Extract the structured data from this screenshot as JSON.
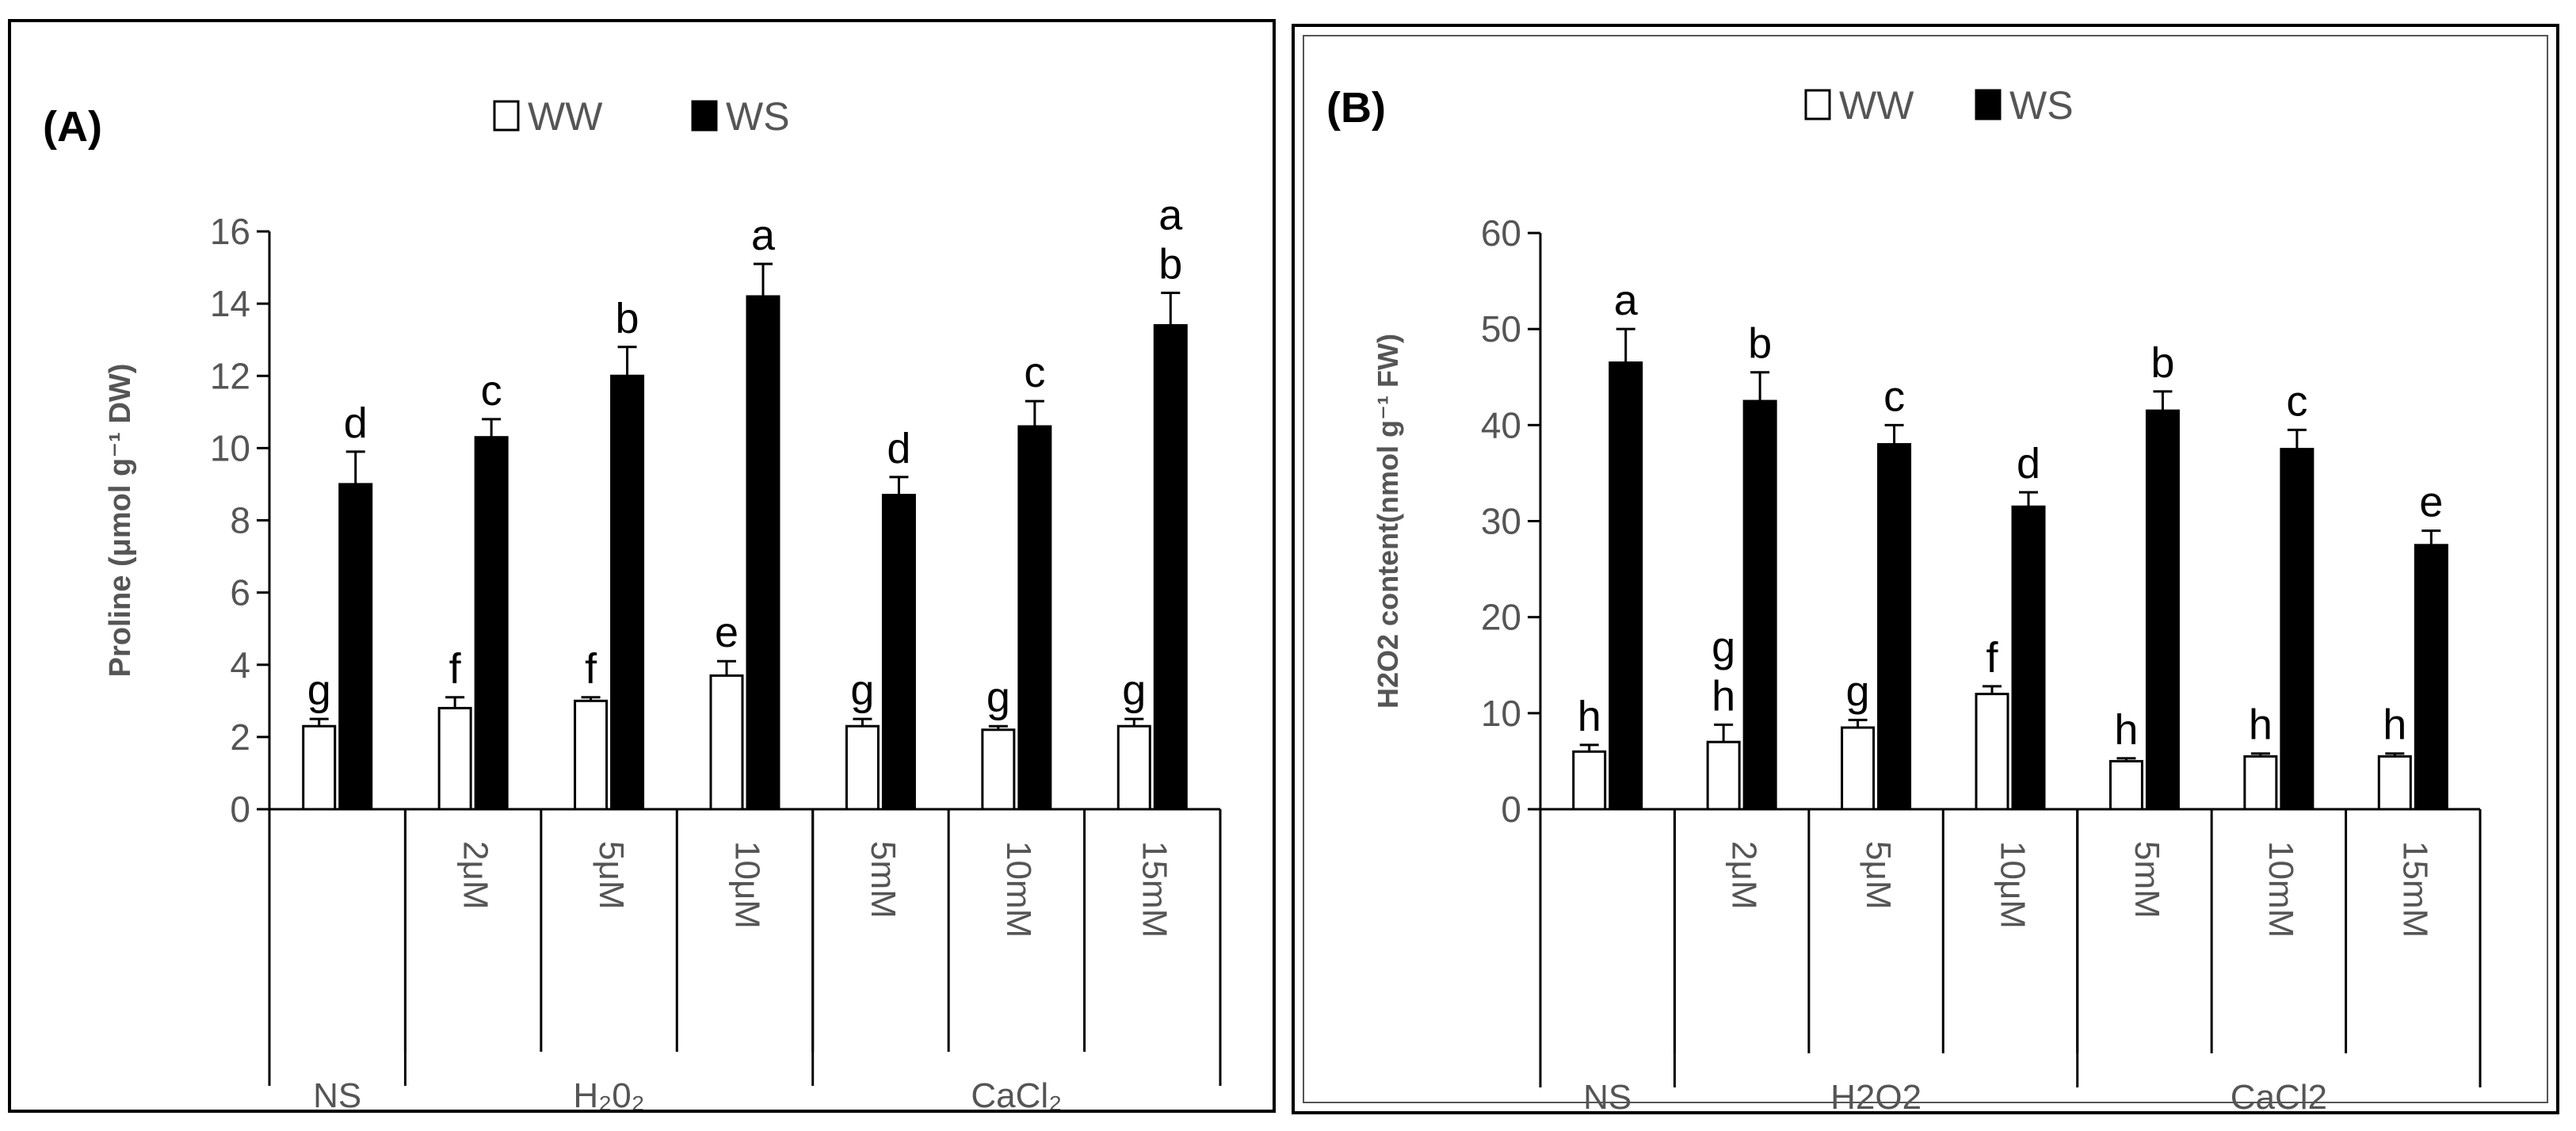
{
  "chart_data": [
    {
      "type": "bar",
      "panel_label": "(A)",
      "ylabel": "Proline (μmol g⁻¹ DW)",
      "ylim": [
        0,
        16
      ],
      "yticks": [
        "0",
        "2",
        "4",
        "6",
        "8",
        "10",
        "12",
        "14",
        "16"
      ],
      "categories": [
        "",
        "2μM",
        "5μM",
        "10μM",
        "5mM",
        "10mM",
        "15mM"
      ],
      "groups": [
        {
          "label": "NS",
          "span": 1
        },
        {
          "label": "H₂0₂",
          "span": 3
        },
        {
          "label": "CaCl₂",
          "span": 3
        }
      ],
      "legend": [
        "WW",
        "WS"
      ],
      "series": [
        {
          "name": "WW",
          "color": "#ffffff",
          "values": [
            2.3,
            2.8,
            3.0,
            3.7,
            2.3,
            2.2,
            2.3
          ],
          "errors": [
            0.2,
            0.3,
            0.1,
            0.4,
            0.2,
            0.1,
            0.2
          ],
          "letters": [
            "g",
            "f",
            "f",
            "e",
            "g",
            "g",
            "g"
          ]
        },
        {
          "name": "WS",
          "color": "#000000",
          "values": [
            9.0,
            10.3,
            12.0,
            14.2,
            8.7,
            10.6,
            13.4
          ],
          "errors": [
            0.9,
            0.5,
            0.8,
            0.9,
            0.5,
            0.7,
            0.9
          ],
          "letters": [
            "d",
            "c",
            "b",
            "a",
            "d",
            "c",
            "a\nb"
          ]
        }
      ]
    },
    {
      "type": "bar",
      "panel_label": "(B)",
      "ylabel": "H2O2 content(nmol g⁻¹ FW)",
      "ylim": [
        0,
        60
      ],
      "yticks": [
        "0",
        "10",
        "20",
        "30",
        "40",
        "50",
        "60"
      ],
      "categories": [
        "",
        "2μM",
        "5μM",
        "10μM",
        "5mM",
        "10mM",
        "15mM"
      ],
      "groups": [
        {
          "label": "NS",
          "span": 1
        },
        {
          "label": "H2O2",
          "span": 3
        },
        {
          "label": "CaCl2",
          "span": 3
        }
      ],
      "legend": [
        "WW",
        "WS"
      ],
      "series": [
        {
          "name": "WW",
          "color": "#ffffff",
          "values": [
            6.0,
            7.0,
            8.5,
            12.0,
            5.0,
            5.5,
            5.5
          ],
          "errors": [
            0.7,
            1.8,
            0.8,
            0.8,
            0.3,
            0.3,
            0.3
          ],
          "letters": [
            "h",
            "g\nh",
            "g",
            "f",
            "h",
            "h",
            "h"
          ]
        },
        {
          "name": "WS",
          "color": "#000000",
          "values": [
            46.5,
            42.5,
            38.0,
            31.5,
            41.5,
            37.5,
            27.5
          ],
          "errors": [
            3.5,
            3.0,
            2.0,
            1.5,
            2.0,
            2.0,
            1.5
          ],
          "letters": [
            "a",
            "b",
            "c",
            "d",
            "b",
            "c",
            "e"
          ]
        }
      ]
    }
  ]
}
